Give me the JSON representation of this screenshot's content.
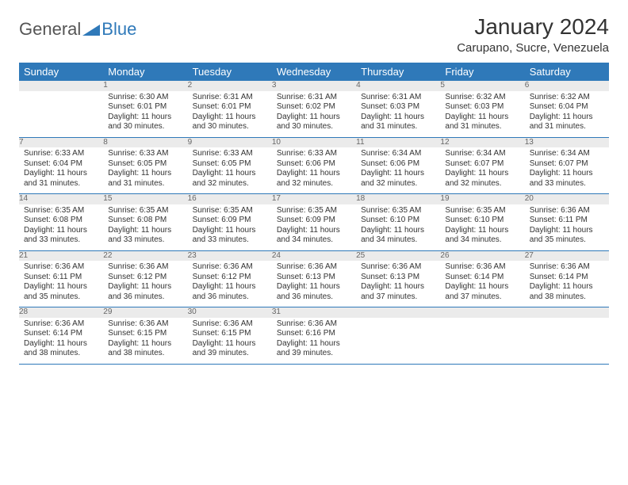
{
  "brand": {
    "part1": "General",
    "part2": "Blue"
  },
  "title": "January 2024",
  "location": "Carupano, Sucre, Venezuela",
  "colors": {
    "header_bg": "#2f79b9",
    "header_text": "#ffffff",
    "daynum_bg": "#ebebeb",
    "daynum_text": "#666666",
    "border": "#2f79b9",
    "text": "#333333"
  },
  "fonts": {
    "title_size": 28,
    "subtitle_size": 15,
    "th_size": 13,
    "cell_size": 10
  },
  "day_headers": [
    "Sunday",
    "Monday",
    "Tuesday",
    "Wednesday",
    "Thursday",
    "Friday",
    "Saturday"
  ],
  "weeks": [
    [
      null,
      {
        "n": "1",
        "sr": "6:30 AM",
        "ss": "6:01 PM",
        "dl": "11 hours and 30 minutes."
      },
      {
        "n": "2",
        "sr": "6:31 AM",
        "ss": "6:01 PM",
        "dl": "11 hours and 30 minutes."
      },
      {
        "n": "3",
        "sr": "6:31 AM",
        "ss": "6:02 PM",
        "dl": "11 hours and 30 minutes."
      },
      {
        "n": "4",
        "sr": "6:31 AM",
        "ss": "6:03 PM",
        "dl": "11 hours and 31 minutes."
      },
      {
        "n": "5",
        "sr": "6:32 AM",
        "ss": "6:03 PM",
        "dl": "11 hours and 31 minutes."
      },
      {
        "n": "6",
        "sr": "6:32 AM",
        "ss": "6:04 PM",
        "dl": "11 hours and 31 minutes."
      }
    ],
    [
      {
        "n": "7",
        "sr": "6:33 AM",
        "ss": "6:04 PM",
        "dl": "11 hours and 31 minutes."
      },
      {
        "n": "8",
        "sr": "6:33 AM",
        "ss": "6:05 PM",
        "dl": "11 hours and 31 minutes."
      },
      {
        "n": "9",
        "sr": "6:33 AM",
        "ss": "6:05 PM",
        "dl": "11 hours and 32 minutes."
      },
      {
        "n": "10",
        "sr": "6:33 AM",
        "ss": "6:06 PM",
        "dl": "11 hours and 32 minutes."
      },
      {
        "n": "11",
        "sr": "6:34 AM",
        "ss": "6:06 PM",
        "dl": "11 hours and 32 minutes."
      },
      {
        "n": "12",
        "sr": "6:34 AM",
        "ss": "6:07 PM",
        "dl": "11 hours and 32 minutes."
      },
      {
        "n": "13",
        "sr": "6:34 AM",
        "ss": "6:07 PM",
        "dl": "11 hours and 33 minutes."
      }
    ],
    [
      {
        "n": "14",
        "sr": "6:35 AM",
        "ss": "6:08 PM",
        "dl": "11 hours and 33 minutes."
      },
      {
        "n": "15",
        "sr": "6:35 AM",
        "ss": "6:08 PM",
        "dl": "11 hours and 33 minutes."
      },
      {
        "n": "16",
        "sr": "6:35 AM",
        "ss": "6:09 PM",
        "dl": "11 hours and 33 minutes."
      },
      {
        "n": "17",
        "sr": "6:35 AM",
        "ss": "6:09 PM",
        "dl": "11 hours and 34 minutes."
      },
      {
        "n": "18",
        "sr": "6:35 AM",
        "ss": "6:10 PM",
        "dl": "11 hours and 34 minutes."
      },
      {
        "n": "19",
        "sr": "6:35 AM",
        "ss": "6:10 PM",
        "dl": "11 hours and 34 minutes."
      },
      {
        "n": "20",
        "sr": "6:36 AM",
        "ss": "6:11 PM",
        "dl": "11 hours and 35 minutes."
      }
    ],
    [
      {
        "n": "21",
        "sr": "6:36 AM",
        "ss": "6:11 PM",
        "dl": "11 hours and 35 minutes."
      },
      {
        "n": "22",
        "sr": "6:36 AM",
        "ss": "6:12 PM",
        "dl": "11 hours and 36 minutes."
      },
      {
        "n": "23",
        "sr": "6:36 AM",
        "ss": "6:12 PM",
        "dl": "11 hours and 36 minutes."
      },
      {
        "n": "24",
        "sr": "6:36 AM",
        "ss": "6:13 PM",
        "dl": "11 hours and 36 minutes."
      },
      {
        "n": "25",
        "sr": "6:36 AM",
        "ss": "6:13 PM",
        "dl": "11 hours and 37 minutes."
      },
      {
        "n": "26",
        "sr": "6:36 AM",
        "ss": "6:14 PM",
        "dl": "11 hours and 37 minutes."
      },
      {
        "n": "27",
        "sr": "6:36 AM",
        "ss": "6:14 PM",
        "dl": "11 hours and 38 minutes."
      }
    ],
    [
      {
        "n": "28",
        "sr": "6:36 AM",
        "ss": "6:14 PM",
        "dl": "11 hours and 38 minutes."
      },
      {
        "n": "29",
        "sr": "6:36 AM",
        "ss": "6:15 PM",
        "dl": "11 hours and 38 minutes."
      },
      {
        "n": "30",
        "sr": "6:36 AM",
        "ss": "6:15 PM",
        "dl": "11 hours and 39 minutes."
      },
      {
        "n": "31",
        "sr": "6:36 AM",
        "ss": "6:16 PM",
        "dl": "11 hours and 39 minutes."
      },
      null,
      null,
      null
    ]
  ],
  "labels": {
    "sunrise": "Sunrise:",
    "sunset": "Sunset:",
    "daylight": "Daylight:"
  }
}
